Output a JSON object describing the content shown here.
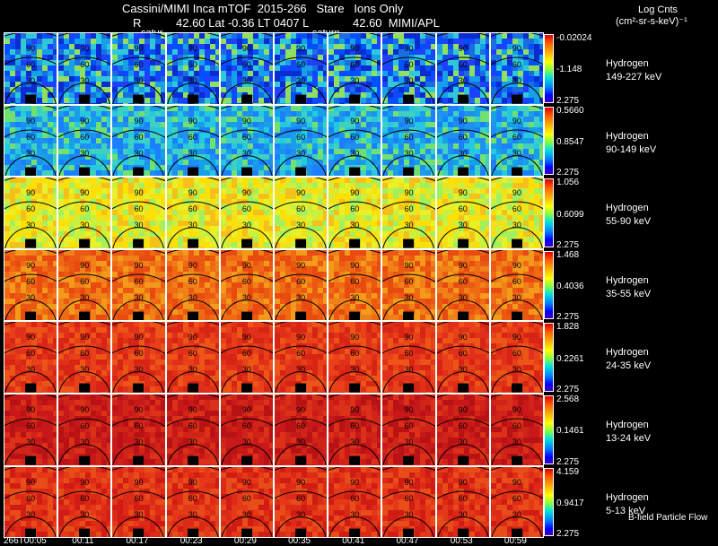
{
  "header": {
    "line1": "Cassini/MIMI Inca mTOF  2015-266   Stare   Ions Only",
    "line2_left": "R",
    "line2_mid": "42.60 Lat -0.36 LT 0407 L",
    "line2_right": "42.60  MIMI/APL",
    "satur_1": "satur",
    "satur_2": "saturn",
    "units_title": "Log Cnts",
    "units_sub": "(cm²-sr-s-keV)⁻¹"
  },
  "rows": [
    {
      "species": "Hydrogen",
      "energy": "149-227 keV",
      "max": "-0.02024",
      "mid": "-1.148",
      "min": "2.275",
      "theme": "blue"
    },
    {
      "species": "Hydrogen",
      "energy": "90-149 keV",
      "max": "0.5660",
      "mid": "0.8547",
      "min": "2.275",
      "theme": "cyan"
    },
    {
      "species": "Hydrogen",
      "energy": "55-90 keV",
      "max": "1.056",
      "mid": "0.6099",
      "min": "2.275",
      "theme": "yellow"
    },
    {
      "species": "Hydrogen",
      "energy": "35-55 keV",
      "max": "1.468",
      "mid": "0.4036",
      "min": "2.275",
      "theme": "orange"
    },
    {
      "species": "Hydrogen",
      "energy": "24-35 keV",
      "max": "1.828",
      "mid": "0.2261",
      "min": "2.275",
      "theme": "red"
    },
    {
      "species": "Hydrogen",
      "energy": "13-24 keV",
      "max": "2.568",
      "mid": "0.1461",
      "min": "2.275",
      "theme": "darkred"
    },
    {
      "species": "Hydrogen",
      "energy": "5-13 keV",
      "max": "4.159",
      "mid": "0.9417",
      "min": "2.275",
      "theme": "red2"
    }
  ],
  "latitude_labels": [
    "90",
    "60",
    "30"
  ],
  "time_labels": [
    "266T00:05",
    "00:11",
    "00:17",
    "00:23",
    "00:29",
    "00:35",
    "00:41",
    "00:47",
    "00:53",
    "00:59"
  ],
  "footer_note": "B-field Particle Flow",
  "colors": {
    "blue": "#1a6ee0",
    "cyan": "#26b0e6",
    "yellow": "#f2e01a",
    "orange": "#f06a14",
    "red": "#e0301a",
    "darkred": "#c8181a",
    "red2": "#dc2a16"
  }
}
